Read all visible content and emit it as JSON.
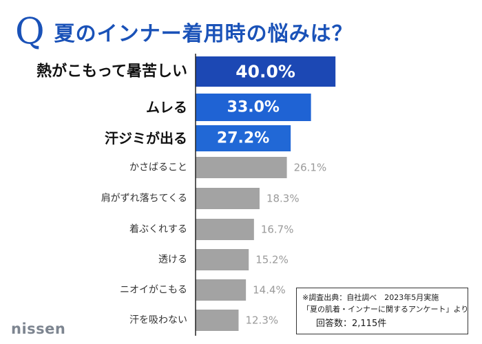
{
  "title": {
    "q_mark": "Q",
    "text": "夏のインナー着用時の悩みは？"
  },
  "chart_data": {
    "type": "bar",
    "orientation": "horizontal",
    "categories": [
      "熱がこもって暑苦しい",
      "ムレる",
      "汗ジミが出る",
      "かさばること",
      "肩がずれ落ちてくる",
      "着ぶくれする",
      "透ける",
      "ニオイがこもる",
      "汗を吸わない"
    ],
    "values": [
      40.0,
      33.0,
      27.2,
      26.1,
      18.3,
      16.7,
      15.2,
      14.4,
      12.3
    ],
    "value_labels": [
      "40.0%",
      "33.0%",
      "27.2%",
      "26.1%",
      "18.3%",
      "16.7%",
      "15.2%",
      "14.4%",
      "12.3%"
    ],
    "highlighted_count": 3,
    "colors": {
      "top1": "#1c48b4",
      "top2": "#1f63d4",
      "top3": "#2168d6",
      "others": "#a3a3a3",
      "others_label": "#9a9a9a"
    },
    "xlim": [
      0,
      100
    ]
  },
  "note": {
    "source": "※調査出典：自社調べ　2023年5月実施",
    "survey": "「夏の肌着・インナーに関するアンケート」より",
    "respondents": "回答数：2,115件"
  },
  "logo": "nissen"
}
